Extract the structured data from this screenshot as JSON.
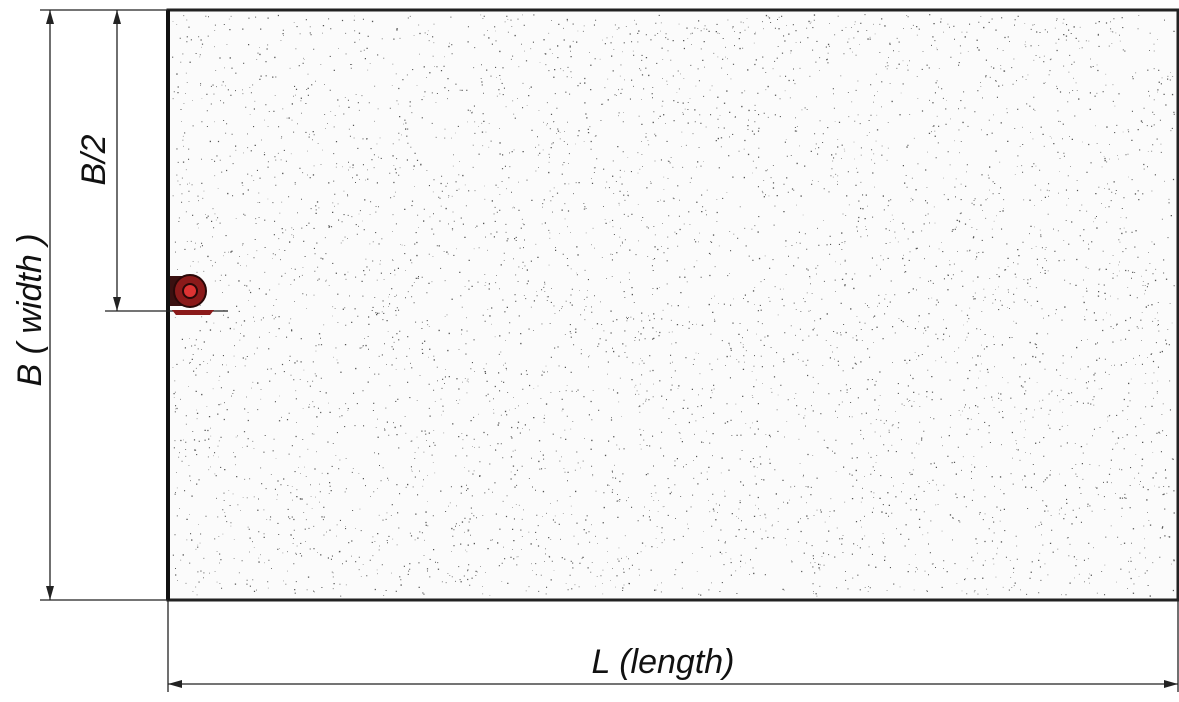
{
  "dimensions": [
    {
      "label": "B ( width )"
    },
    {
      "label": "B/2"
    },
    {
      "label": "L (length)"
    }
  ]
}
